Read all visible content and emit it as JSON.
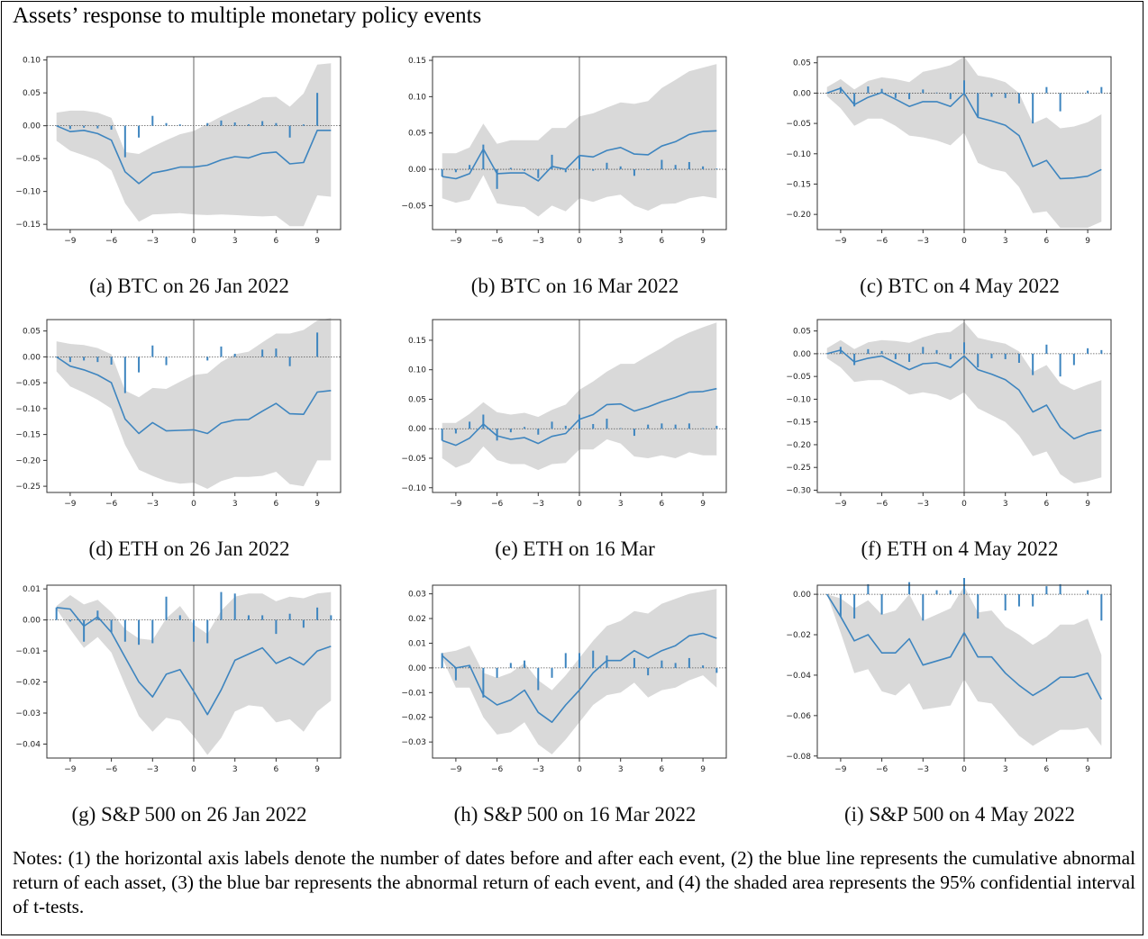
{
  "title": "Assets’ response to multiple monetary policy events",
  "notes": "Notes: (1) the horizontal axis labels denote the number of dates before and after each event, (2) the blue line represents the cumulative abnormal return of each asset, (3) the blue bar represents the abnormal return of each event, and (4) the shaded area represents the 95% confidential interval of t-tests.",
  "colors": {
    "line": "#3e85bf",
    "band": "#d9d9d9",
    "axis": "#333333"
  },
  "chart_data": [
    {
      "type": "line",
      "caption": "(a) BTC on 26 Jan 2022",
      "x": [
        -10,
        -9,
        -8,
        -7,
        -6,
        -5,
        -4,
        -3,
        -2,
        -1,
        0,
        1,
        2,
        3,
        4,
        5,
        6,
        7,
        8,
        9,
        10
      ],
      "xticks": [
        -9,
        -6,
        -3,
        0,
        3,
        6,
        9
      ],
      "ylim": [
        -0.158,
        0.105
      ],
      "yticks": [
        0.1,
        0.05,
        0.0,
        -0.05,
        -0.1,
        -0.15
      ],
      "ytick_labels": [
        "0.10",
        "0.05",
        "0.00",
        "−0.05",
        "−0.10",
        "−0.15"
      ],
      "cumulative": [
        0,
        -0.009,
        -0.007,
        -0.012,
        -0.022,
        -0.07,
        -0.088,
        -0.072,
        -0.068,
        -0.063,
        -0.063,
        -0.06,
        -0.052,
        -0.047,
        -0.049,
        -0.042,
        -0.04,
        -0.058,
        -0.056,
        -0.007,
        -0.007
      ],
      "bars": [
        0,
        -0.005,
        -0.003,
        -0.004,
        -0.006,
        -0.048,
        -0.018,
        0.015,
        0.004,
        0.002,
        0,
        0.004,
        0.008,
        0.005,
        0.002,
        0.007,
        0.004,
        -0.018,
        0.002,
        0.05,
        0
      ],
      "ci_upper": [
        0.02,
        0.023,
        0.023,
        0.02,
        0.012,
        -0.04,
        -0.043,
        -0.032,
        -0.022,
        -0.013,
        -0.008,
        0.003,
        0.014,
        0.024,
        0.033,
        0.043,
        0.044,
        0.029,
        0.049,
        0.093,
        0.095
      ],
      "ci_lower": [
        -0.023,
        -0.038,
        -0.045,
        -0.053,
        -0.068,
        -0.118,
        -0.146,
        -0.135,
        -0.134,
        -0.133,
        -0.135,
        -0.136,
        -0.135,
        -0.136,
        -0.137,
        -0.138,
        -0.137,
        -0.153,
        -0.153,
        -0.106,
        -0.108
      ]
    },
    {
      "type": "line",
      "caption": "(b) BTC on 16 Mar 2022",
      "x": [
        -10,
        -9,
        -8,
        -7,
        -6,
        -5,
        -4,
        -3,
        -2,
        -1,
        0,
        1,
        2,
        3,
        4,
        5,
        6,
        7,
        8,
        9,
        10
      ],
      "xticks": [
        -9,
        -6,
        -3,
        0,
        3,
        6,
        9
      ],
      "ylim": [
        -0.083,
        0.155
      ],
      "yticks": [
        0.15,
        0.1,
        0.05,
        0.0,
        -0.05
      ],
      "ytick_labels": [
        "0.15",
        "0.10",
        "0.05",
        "0.00",
        "−0.05"
      ],
      "cumulative": [
        -0.01,
        -0.013,
        -0.006,
        0.028,
        -0.006,
        -0.005,
        -0.005,
        -0.016,
        0.004,
        0,
        0.019,
        0.017,
        0.026,
        0.03,
        0.021,
        0.02,
        0.032,
        0.038,
        0.048,
        0.052,
        0.053
      ],
      "bars": [
        -0.01,
        -0.004,
        0.006,
        0.034,
        -0.027,
        0.002,
        -0.002,
        -0.012,
        0.02,
        -0.004,
        0.019,
        -0.002,
        0.009,
        0.004,
        -0.009,
        -0.001,
        0.013,
        0.006,
        0.01,
        0.004,
        0.001
      ],
      "ci_upper": [
        0.022,
        0.022,
        0.03,
        0.063,
        0.035,
        0.04,
        0.04,
        0.04,
        0.057,
        0.057,
        0.073,
        0.077,
        0.085,
        0.092,
        0.09,
        0.094,
        0.112,
        0.123,
        0.135,
        0.14,
        0.145
      ],
      "ci_lower": [
        -0.04,
        -0.046,
        -0.042,
        -0.008,
        -0.047,
        -0.05,
        -0.052,
        -0.065,
        -0.05,
        -0.058,
        -0.04,
        -0.045,
        -0.038,
        -0.035,
        -0.05,
        -0.057,
        -0.048,
        -0.047,
        -0.04,
        -0.037,
        -0.04
      ]
    },
    {
      "type": "line",
      "caption": "(c) BTC on 4 May 2022",
      "x": [
        -10,
        -9,
        -8,
        -7,
        -6,
        -5,
        -4,
        -3,
        -2,
        -1,
        0,
        1,
        2,
        3,
        4,
        5,
        6,
        7,
        8,
        9,
        10
      ],
      "xticks": [
        -9,
        -6,
        -3,
        0,
        3,
        6,
        9
      ],
      "ylim": [
        -0.225,
        0.06
      ],
      "yticks": [
        0.05,
        0.0,
        -0.05,
        -0.1,
        -0.15,
        -0.2
      ],
      "ytick_labels": [
        "0.05",
        "0.00",
        "−0.05",
        "−0.10",
        "−0.15",
        "−0.20"
      ],
      "cumulative": [
        0,
        0.008,
        -0.019,
        -0.007,
        0.001,
        -0.01,
        -0.022,
        -0.014,
        -0.014,
        -0.022,
        0,
        -0.04,
        -0.046,
        -0.053,
        -0.07,
        -0.121,
        -0.111,
        -0.141,
        -0.14,
        -0.137,
        -0.126
      ],
      "bars": [
        0,
        0.01,
        -0.022,
        0.011,
        0.007,
        -0.008,
        -0.01,
        0.006,
        0.001,
        -0.01,
        0.021,
        -0.04,
        -0.006,
        -0.008,
        -0.017,
        -0.05,
        0.01,
        -0.03,
        0,
        0.004,
        0.01
      ],
      "ci_upper": [
        0.01,
        0.023,
        0.006,
        0.02,
        0.026,
        0.023,
        0.018,
        0.035,
        0.04,
        0.046,
        0.06,
        0.029,
        0.025,
        0.018,
        0,
        -0.05,
        -0.04,
        -0.058,
        -0.055,
        -0.048,
        -0.035
      ],
      "ci_lower": [
        -0.005,
        -0.025,
        -0.054,
        -0.042,
        -0.042,
        -0.054,
        -0.07,
        -0.073,
        -0.078,
        -0.086,
        -0.065,
        -0.115,
        -0.125,
        -0.13,
        -0.155,
        -0.198,
        -0.195,
        -0.222,
        -0.222,
        -0.222,
        -0.212
      ]
    },
    {
      "type": "line",
      "caption": "(d) ETH on 26 Jan 2022",
      "x": [
        -10,
        -9,
        -8,
        -7,
        -6,
        -5,
        -4,
        -3,
        -2,
        -1,
        0,
        1,
        2,
        3,
        4,
        5,
        6,
        7,
        8,
        9,
        10
      ],
      "xticks": [
        -9,
        -6,
        -3,
        0,
        3,
        6,
        9
      ],
      "ylim": [
        -0.262,
        0.072
      ],
      "yticks": [
        0.05,
        0.0,
        -0.05,
        -0.1,
        -0.15,
        -0.2,
        -0.25
      ],
      "ytick_labels": [
        "0.05",
        "0.00",
        "−0.05",
        "−0.10",
        "−0.15",
        "−0.20",
        "−0.25"
      ],
      "cumulative": [
        0,
        -0.018,
        -0.025,
        -0.035,
        -0.05,
        -0.12,
        -0.148,
        -0.127,
        -0.143,
        -0.142,
        -0.141,
        -0.148,
        -0.128,
        -0.122,
        -0.121,
        -0.105,
        -0.09,
        -0.11,
        -0.111,
        -0.068,
        -0.065
      ],
      "bars": [
        0,
        -0.01,
        -0.007,
        -0.01,
        -0.015,
        -0.07,
        -0.03,
        0.022,
        -0.016,
        0,
        0,
        -0.007,
        0.02,
        0.006,
        0,
        0.014,
        0.016,
        -0.018,
        0,
        0.047,
        0
      ],
      "ci_upper": [
        0.03,
        0.025,
        0.023,
        0.017,
        0.005,
        -0.065,
        -0.078,
        -0.06,
        -0.062,
        -0.048,
        -0.035,
        -0.032,
        -0.01,
        0.005,
        0.01,
        0.028,
        0.045,
        0.045,
        0.052,
        0.07,
        0.075
      ],
      "ci_lower": [
        -0.028,
        -0.057,
        -0.069,
        -0.083,
        -0.1,
        -0.17,
        -0.218,
        -0.23,
        -0.24,
        -0.245,
        -0.243,
        -0.255,
        -0.24,
        -0.232,
        -0.232,
        -0.23,
        -0.222,
        -0.246,
        -0.25,
        -0.2,
        -0.2
      ]
    },
    {
      "type": "line",
      "caption": "(e) ETH on 16 Mar",
      "x": [
        -10,
        -9,
        -8,
        -7,
        -6,
        -5,
        -4,
        -3,
        -2,
        -1,
        0,
        1,
        2,
        3,
        4,
        5,
        6,
        7,
        8,
        9,
        10
      ],
      "xticks": [
        -9,
        -6,
        -3,
        0,
        3,
        6,
        9
      ],
      "ylim": [
        -0.108,
        0.185
      ],
      "yticks": [
        0.15,
        0.1,
        0.05,
        0.0,
        -0.05,
        -0.1
      ],
      "ytick_labels": [
        "0.15",
        "0.10",
        "0.05",
        "0.00",
        "−0.05",
        "−0.10"
      ],
      "cumulative": [
        -0.02,
        -0.028,
        -0.016,
        0.008,
        -0.012,
        -0.018,
        -0.015,
        -0.025,
        -0.013,
        -0.008,
        0.016,
        0.024,
        0.041,
        0.042,
        0.03,
        0.037,
        0.046,
        0.053,
        0.062,
        0.063,
        0.068
      ],
      "bars": [
        -0.02,
        -0.008,
        0.012,
        0.024,
        -0.02,
        -0.006,
        0.003,
        -0.01,
        0.012,
        0.005,
        0.024,
        0.008,
        0.017,
        0.001,
        -0.012,
        0.007,
        0.009,
        0.007,
        0.009,
        0.001,
        0.005
      ],
      "ci_upper": [
        0.01,
        0.01,
        0.025,
        0.045,
        0.028,
        0.024,
        0.027,
        0.02,
        0.032,
        0.041,
        0.066,
        0.08,
        0.097,
        0.11,
        0.11,
        0.124,
        0.137,
        0.152,
        0.163,
        0.172,
        0.18
      ],
      "ci_lower": [
        -0.05,
        -0.066,
        -0.057,
        -0.03,
        -0.053,
        -0.06,
        -0.06,
        -0.07,
        -0.06,
        -0.058,
        -0.035,
        -0.035,
        -0.018,
        -0.025,
        -0.047,
        -0.05,
        -0.045,
        -0.05,
        -0.04,
        -0.045,
        -0.045
      ]
    },
    {
      "type": "line",
      "caption": "(f) ETH on 4 May 2022",
      "x": [
        -10,
        -9,
        -8,
        -7,
        -6,
        -5,
        -4,
        -3,
        -2,
        -1,
        0,
        1,
        2,
        3,
        4,
        5,
        6,
        7,
        8,
        9,
        10
      ],
      "xticks": [
        -9,
        -6,
        -3,
        0,
        3,
        6,
        9
      ],
      "ylim": [
        -0.305,
        0.075
      ],
      "yticks": [
        0.05,
        0.0,
        -0.05,
        -0.1,
        -0.15,
        -0.2,
        -0.25,
        -0.3
      ],
      "ytick_labels": [
        "0.05",
        "0.00",
        "−0.05",
        "−0.10",
        "−0.15",
        "−0.20",
        "−0.25",
        "−0.30"
      ],
      "cumulative": [
        0,
        0.008,
        -0.018,
        -0.01,
        -0.005,
        -0.02,
        -0.035,
        -0.022,
        -0.02,
        -0.03,
        -0.005,
        -0.035,
        -0.045,
        -0.057,
        -0.08,
        -0.128,
        -0.113,
        -0.162,
        -0.187,
        -0.175,
        -0.168
      ],
      "bars": [
        0,
        0.015,
        -0.025,
        0.01,
        0.006,
        -0.012,
        -0.018,
        0.015,
        0.008,
        -0.012,
        0.025,
        -0.03,
        -0.01,
        -0.012,
        -0.02,
        -0.047,
        0.02,
        -0.05,
        -0.025,
        0.012,
        0.008
      ],
      "ci_upper": [
        0.012,
        0.03,
        0.01,
        0.025,
        0.03,
        0.028,
        0.024,
        0.036,
        0.045,
        0.048,
        0.07,
        0.035,
        0.028,
        0.022,
        0.005,
        -0.04,
        -0.025,
        -0.065,
        -0.08,
        -0.068,
        -0.058
      ],
      "ci_lower": [
        -0.01,
        -0.03,
        -0.062,
        -0.058,
        -0.058,
        -0.072,
        -0.09,
        -0.085,
        -0.09,
        -0.102,
        -0.085,
        -0.12,
        -0.135,
        -0.15,
        -0.18,
        -0.225,
        -0.215,
        -0.265,
        -0.285,
        -0.28,
        -0.272
      ]
    },
    {
      "type": "line",
      "caption": "(g) S&P 500 on 26 Jan 2022",
      "x": [
        -10,
        -9,
        -8,
        -7,
        -6,
        -5,
        -4,
        -3,
        -2,
        -1,
        0,
        1,
        2,
        3,
        4,
        5,
        6,
        7,
        8,
        9,
        10
      ],
      "xticks": [
        -9,
        -6,
        -3,
        0,
        3,
        6,
        9
      ],
      "ylim": [
        -0.0445,
        0.0112
      ],
      "yticks": [
        0.01,
        0.0,
        -0.01,
        -0.02,
        -0.03,
        -0.04
      ],
      "ytick_labels": [
        "0.01",
        "0.00",
        "−0.01",
        "−0.02",
        "−0.03",
        "−0.04"
      ],
      "cumulative": [
        0.004,
        0.0035,
        -0.002,
        0.001,
        -0.004,
        -0.012,
        -0.02,
        -0.0248,
        -0.0175,
        -0.016,
        -0.023,
        -0.0305,
        -0.0225,
        -0.013,
        -0.011,
        -0.009,
        -0.014,
        -0.012,
        -0.0145,
        -0.01,
        -0.0085
      ],
      "bars": [
        0.004,
        -0.0005,
        -0.007,
        0.003,
        -0.004,
        -0.007,
        -0.008,
        -0.0075,
        0.0075,
        0.0015,
        -0.007,
        -0.0075,
        0.009,
        0.0085,
        0.0015,
        0.0015,
        -0.0045,
        0.002,
        -0.0025,
        0.004,
        0.0015
      ],
      "ci_upper": [
        0.0045,
        0.008,
        0.005,
        0.0065,
        0.0025,
        -0.003,
        -0.006,
        -0.0065,
        0.0005,
        0.0045,
        -0.0015,
        -0.0045,
        0.003,
        0.0075,
        0.0085,
        0.0085,
        0.006,
        0.0075,
        0.007,
        0.0085,
        0.009
      ],
      "ci_lower": [
        0.0035,
        -0.003,
        -0.009,
        -0.0055,
        -0.0105,
        -0.021,
        -0.031,
        -0.036,
        -0.0315,
        -0.0325,
        -0.0375,
        -0.0435,
        -0.038,
        -0.0295,
        -0.0275,
        -0.028,
        -0.033,
        -0.032,
        -0.036,
        -0.0295,
        -0.026
      ]
    },
    {
      "type": "line",
      "caption": "(h) S&P 500 on 16 Mar 2022",
      "x": [
        -10,
        -9,
        -8,
        -7,
        -6,
        -5,
        -4,
        -3,
        -2,
        -1,
        0,
        1,
        2,
        3,
        4,
        5,
        6,
        7,
        8,
        9,
        10
      ],
      "xticks": [
        -9,
        -6,
        -3,
        0,
        3,
        6,
        9
      ],
      "ylim": [
        -0.0365,
        0.0335
      ],
      "yticks": [
        0.03,
        0.02,
        0.01,
        0.0,
        -0.01,
        -0.02,
        -0.03
      ],
      "ytick_labels": [
        "0.03",
        "0.02",
        "0.01",
        "0.00",
        "−0.01",
        "−0.02",
        "−0.03"
      ],
      "cumulative": [
        0.005,
        0,
        0.001,
        -0.011,
        -0.015,
        -0.013,
        -0.009,
        -0.018,
        -0.022,
        -0.015,
        -0.009,
        -0.002,
        0.003,
        0.003,
        0.007,
        0.004,
        0.007,
        0.009,
        0.013,
        0.014,
        0.012
      ],
      "bars": [
        0.006,
        -0.005,
        0.001,
        -0.012,
        -0.004,
        0.002,
        0.003,
        -0.009,
        -0.004,
        0.006,
        0.006,
        0.007,
        0.005,
        0,
        0.004,
        -0.003,
        0.003,
        0.002,
        0.004,
        0.001,
        -0.002
      ],
      "ci_upper": [
        0.006,
        0.007,
        0.009,
        -0.002,
        -0.004,
        -0.002,
        0.002,
        -0.005,
        -0.009,
        -0.003,
        0.004,
        0.011,
        0.017,
        0.019,
        0.023,
        0.022,
        0.026,
        0.028,
        0.03,
        0.031,
        0.032
      ],
      "ci_lower": [
        0.004,
        -0.008,
        -0.008,
        -0.02,
        -0.027,
        -0.026,
        -0.022,
        -0.031,
        -0.035,
        -0.029,
        -0.022,
        -0.015,
        -0.011,
        -0.01,
        -0.006,
        -0.012,
        -0.009,
        -0.008,
        -0.005,
        -0.003,
        -0.008
      ]
    },
    {
      "type": "line",
      "caption": "(i) S&P 500 on 4 May 2022",
      "x": [
        -10,
        -9,
        -8,
        -7,
        -6,
        -5,
        -4,
        -3,
        -2,
        -1,
        0,
        1,
        2,
        3,
        4,
        5,
        6,
        7,
        8,
        9,
        10
      ],
      "xticks": [
        -9,
        -6,
        -3,
        0,
        3,
        6,
        9
      ],
      "ylim": [
        -0.081,
        0.0045
      ],
      "yticks": [
        0.0,
        -0.02,
        -0.04,
        -0.06,
        -0.08
      ],
      "ytick_labels": [
        "0.00",
        "−0.02",
        "−0.04",
        "−0.06",
        "−0.08"
      ],
      "cumulative": [
        0,
        -0.011,
        -0.023,
        -0.02,
        -0.029,
        -0.029,
        -0.022,
        -0.035,
        -0.033,
        -0.031,
        -0.019,
        -0.031,
        -0.031,
        -0.039,
        -0.045,
        -0.05,
        -0.046,
        -0.041,
        -0.041,
        -0.039,
        -0.052
      ],
      "bars": [
        0,
        -0.011,
        -0.012,
        0.005,
        -0.01,
        0,
        0.006,
        -0.013,
        0.002,
        0.002,
        0.012,
        -0.012,
        0,
        -0.008,
        -0.006,
        -0.006,
        0.004,
        0.005,
        0,
        0.002,
        -0.013
      ],
      "ci_upper": [
        0,
        -0.002,
        -0.007,
        -0.003,
        -0.01,
        -0.008,
        0,
        -0.013,
        -0.01,
        -0.007,
        0.004,
        -0.009,
        -0.008,
        -0.016,
        -0.02,
        -0.025,
        -0.021,
        -0.015,
        -0.015,
        -0.012,
        -0.03
      ],
      "ci_lower": [
        0,
        -0.019,
        -0.039,
        -0.037,
        -0.048,
        -0.05,
        -0.044,
        -0.057,
        -0.056,
        -0.055,
        -0.042,
        -0.053,
        -0.054,
        -0.062,
        -0.07,
        -0.075,
        -0.071,
        -0.067,
        -0.067,
        -0.066,
        -0.075
      ]
    }
  ]
}
